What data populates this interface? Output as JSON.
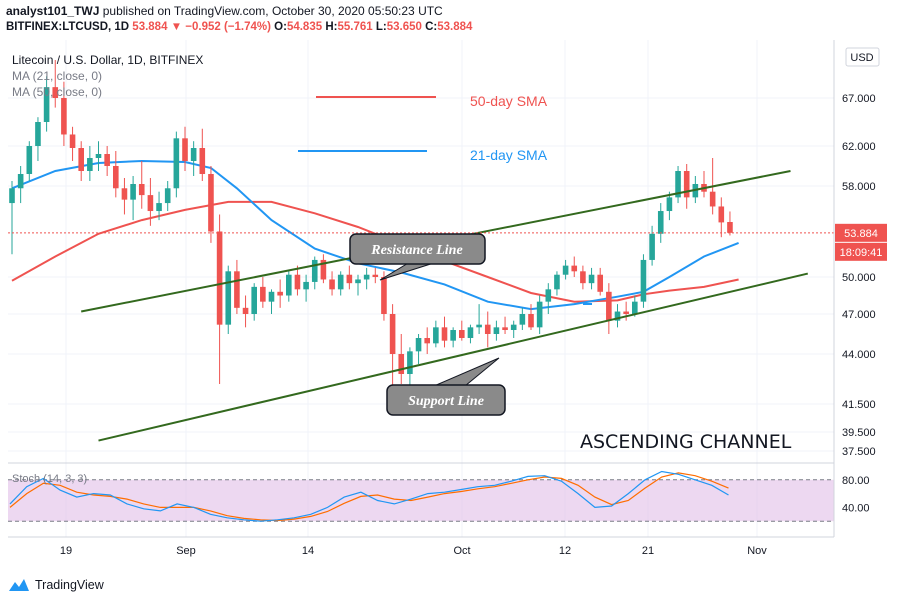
{
  "header": {
    "author": "analyst101_TWJ",
    "published": "published on TradingView.com, October 30, 2020 05:50:23 UTC",
    "symbol": "BITFINEX:LTCUSD, 1D",
    "last": "53.884",
    "change": "−0.952 (−1.74%)",
    "o_label": "O:",
    "o_value": "54.835",
    "h_label": "H:",
    "h_value": "55.761",
    "l_label": "L:",
    "l_value": "53.650",
    "c_label": "C:",
    "c_value": "53.884"
  },
  "legend": {
    "title": "Litecoin / U.S. Dollar, 1D, BITFINEX",
    "ma21": "MA (21, close, 0)",
    "ma50": "MA (50, close, 0)"
  },
  "footer": {
    "brand": "TradingView"
  },
  "colors": {
    "up": "#26a69a",
    "down": "#ef5350",
    "sma50": "#ef5350",
    "sma21": "#2196f3",
    "channel": "#33691e",
    "stoch_k": "#2196f3",
    "stoch_d": "#ff6d00",
    "stoch_band": "#e1bee7"
  },
  "chart_data": [
    {
      "type": "candlestick",
      "title": "Litecoin / U.S. Dollar, 1D, BITFINEX",
      "currency": "USD",
      "x_tick_labels": [
        "19",
        "Sep",
        "14",
        "Oct",
        "12",
        "21",
        "Nov"
      ],
      "y_tick_labels": [
        "67.000",
        "62.000",
        "58.000",
        "50.000",
        "47.000",
        "44.000",
        "41.500",
        "39.500",
        "37.500"
      ],
      "last_price_label": "53.884",
      "countdown_label": "18:09:41",
      "annotations": {
        "sma50": "50-day SMA",
        "sma21": "21-day SMA",
        "resistance": "Resistance Line",
        "support": "Support Line",
        "pattern": "ASCENDING CHANNEL"
      },
      "candles": [
        [
          56.5,
          58.5,
          52.0,
          57.8
        ],
        [
          57.8,
          60.0,
          56.5,
          59.2
        ],
        [
          59.2,
          62.5,
          58.5,
          62.0
        ],
        [
          62.0,
          65.0,
          60.5,
          64.5
        ],
        [
          64.5,
          69.0,
          63.5,
          68.0
        ],
        [
          68.0,
          70.5,
          66.0,
          67.0
        ],
        [
          67.0,
          68.5,
          62.0,
          63.2
        ],
        [
          63.2,
          64.0,
          60.5,
          61.8
        ],
        [
          61.8,
          62.5,
          58.5,
          59.5
        ],
        [
          59.5,
          62.0,
          58.5,
          60.8
        ],
        [
          60.8,
          62.5,
          59.5,
          61.2
        ],
        [
          61.2,
          62.0,
          59.0,
          60.0
        ],
        [
          60.0,
          61.5,
          57.0,
          57.8
        ],
        [
          57.8,
          58.8,
          55.5,
          56.8
        ],
        [
          56.8,
          59.0,
          55.0,
          58.2
        ],
        [
          58.2,
          60.5,
          56.0,
          57.2
        ],
        [
          57.2,
          58.8,
          54.5,
          55.8
        ],
        [
          55.8,
          57.5,
          55.0,
          56.5
        ],
        [
          56.5,
          58.5,
          55.8,
          57.8
        ],
        [
          57.8,
          63.5,
          57.0,
          62.8
        ],
        [
          62.8,
          64.0,
          59.5,
          60.5
        ],
        [
          60.5,
          62.5,
          59.0,
          61.8
        ],
        [
          61.8,
          63.8,
          58.5,
          59.2
        ],
        [
          59.2,
          60.0,
          53.0,
          54.0
        ],
        [
          54.0,
          55.5,
          42.5,
          46.2
        ],
        [
          46.2,
          51.0,
          45.5,
          50.5
        ],
        [
          50.5,
          51.5,
          47.0,
          47.5
        ],
        [
          47.5,
          48.5,
          46.0,
          47.0
        ],
        [
          47.0,
          49.5,
          46.5,
          49.2
        ],
        [
          49.2,
          50.0,
          47.5,
          48.0
        ],
        [
          48.0,
          49.0,
          47.0,
          48.8
        ],
        [
          48.8,
          49.8,
          47.5,
          48.5
        ],
        [
          48.5,
          50.5,
          48.0,
          50.2
        ],
        [
          50.2,
          51.0,
          48.5,
          49.0
        ],
        [
          49.0,
          50.2,
          48.0,
          49.6
        ],
        [
          49.6,
          51.8,
          49.0,
          51.5
        ],
        [
          51.5,
          52.0,
          49.5,
          49.8
        ],
        [
          49.8,
          50.5,
          48.5,
          49.0
        ],
        [
          49.0,
          50.5,
          48.5,
          50.2
        ],
        [
          50.2,
          51.0,
          49.0,
          49.5
        ],
        [
          49.5,
          50.2,
          48.5,
          49.8
        ],
        [
          49.8,
          50.8,
          49.0,
          50.2
        ],
        [
          50.2,
          50.8,
          49.5,
          50.0
        ],
        [
          50.0,
          50.5,
          46.5,
          47.0
        ],
        [
          47.0,
          47.8,
          42.0,
          44.0
        ],
        [
          44.0,
          45.5,
          42.5,
          43.0
        ],
        [
          43.0,
          44.5,
          42.0,
          44.2
        ],
        [
          44.2,
          45.5,
          43.5,
          45.2
        ],
        [
          45.2,
          46.0,
          44.0,
          44.8
        ],
        [
          44.8,
          46.5,
          44.5,
          46.0
        ],
        [
          46.0,
          46.8,
          44.5,
          45.0
        ],
        [
          45.0,
          46.0,
          44.5,
          45.8
        ],
        [
          45.8,
          46.5,
          45.0,
          45.2
        ],
        [
          45.2,
          46.2,
          44.8,
          46.0
        ],
        [
          46.0,
          47.8,
          45.5,
          46.2
        ],
        [
          46.2,
          47.2,
          44.5,
          45.5
        ],
        [
          45.5,
          46.5,
          45.0,
          46.0
        ],
        [
          46.0,
          46.8,
          45.5,
          45.8
        ],
        [
          45.8,
          46.5,
          45.2,
          46.2
        ],
        [
          46.2,
          47.5,
          45.8,
          47.0
        ],
        [
          47.0,
          47.8,
          45.8,
          46.0
        ],
        [
          46.0,
          48.5,
          45.5,
          48.0
        ],
        [
          48.0,
          49.5,
          47.0,
          49.0
        ],
        [
          49.0,
          50.5,
          48.5,
          50.2
        ],
        [
          50.2,
          51.5,
          49.8,
          51.0
        ],
        [
          51.0,
          51.8,
          50.0,
          50.5
        ],
        [
          50.5,
          51.0,
          49.0,
          49.5
        ],
        [
          49.5,
          50.8,
          49.0,
          50.2
        ],
        [
          50.2,
          50.8,
          48.5,
          48.8
        ],
        [
          48.8,
          49.5,
          45.5,
          46.5
        ],
        [
          46.5,
          47.8,
          46.0,
          47.2
        ],
        [
          47.2,
          48.0,
          46.5,
          47.0
        ],
        [
          47.0,
          48.5,
          46.8,
          48.0
        ],
        [
          48.0,
          52.0,
          47.5,
          51.5
        ],
        [
          51.5,
          54.5,
          51.0,
          53.8
        ],
        [
          53.8,
          56.5,
          53.0,
          55.8
        ],
        [
          55.8,
          57.5,
          55.0,
          57.0
        ],
        [
          57.0,
          60.0,
          56.5,
          59.5
        ],
        [
          59.5,
          60.2,
          56.0,
          57.0
        ],
        [
          57.0,
          59.0,
          56.5,
          58.2
        ],
        [
          58.2,
          59.5,
          57.0,
          57.5
        ],
        [
          57.5,
          60.8,
          55.5,
          56.2
        ],
        [
          56.2,
          57.0,
          53.5,
          54.8
        ],
        [
          54.835,
          55.761,
          53.65,
          53.884
        ]
      ],
      "sma21": [
        [
          0,
          57.8
        ],
        [
          5,
          59.5
        ],
        [
          10,
          60.3
        ],
        [
          15,
          60.5
        ],
        [
          20,
          60.4
        ],
        [
          23,
          59.8
        ],
        [
          26,
          57.8
        ],
        [
          30,
          55.0
        ],
        [
          35,
          52.5
        ],
        [
          40,
          51.2
        ],
        [
          45,
          50.4
        ],
        [
          50,
          49.4
        ],
        [
          55,
          48.0
        ],
        [
          60,
          47.4
        ],
        [
          65,
          47.8
        ],
        [
          70,
          48.4
        ],
        [
          73,
          48.8
        ],
        [
          76,
          50.0
        ],
        [
          80,
          51.8
        ],
        [
          84,
          53.0
        ]
      ],
      "sma50": [
        [
          0,
          49.7
        ],
        [
          5,
          51.8
        ],
        [
          10,
          53.8
        ],
        [
          15,
          55.0
        ],
        [
          20,
          55.9
        ],
        [
          25,
          56.6
        ],
        [
          30,
          56.6
        ],
        [
          35,
          55.6
        ],
        [
          40,
          54.4
        ],
        [
          45,
          52.9
        ],
        [
          50,
          51.4
        ],
        [
          55,
          50.0
        ],
        [
          60,
          48.7
        ],
        [
          65,
          48.0
        ],
        [
          70,
          48.1
        ],
        [
          73,
          48.6
        ],
        [
          76,
          48.9
        ],
        [
          80,
          49.2
        ],
        [
          84,
          49.8
        ]
      ],
      "channel": {
        "resistance": [
          [
            8,
            47.2
          ],
          [
            90,
            59.5
          ]
        ],
        "support": [
          [
            10,
            38.6
          ],
          [
            92,
            50.3
          ]
        ]
      }
    },
    {
      "type": "line",
      "title": "Stoch (14, 3, 3)",
      "y_tick_labels": [
        "80.00",
        "40.00"
      ],
      "band": [
        20,
        80
      ],
      "series": [
        {
          "name": "%K",
          "values": [
            [
              0,
              45
            ],
            [
              3,
              70
            ],
            [
              6,
              82
            ],
            [
              9,
              65
            ],
            [
              12,
              55
            ],
            [
              15,
              60
            ],
            [
              18,
              58
            ],
            [
              21,
              45
            ],
            [
              24,
              38
            ],
            [
              27,
              35
            ],
            [
              30,
              45
            ],
            [
              33,
              40
            ],
            [
              36,
              30
            ],
            [
              39,
              25
            ],
            [
              42,
              22
            ],
            [
              45,
              20
            ],
            [
              48,
              22
            ],
            [
              51,
              25
            ],
            [
              54,
              30
            ],
            [
              57,
              40
            ],
            [
              60,
              55
            ],
            [
              63,
              62
            ],
            [
              66,
              50
            ],
            [
              69,
              45
            ],
            [
              72,
              52
            ],
            [
              75,
              60
            ],
            [
              78,
              62
            ],
            [
              81,
              66
            ],
            [
              84,
              70
            ],
            [
              87,
              72
            ],
            [
              90,
              78
            ],
            [
              93,
              85
            ],
            [
              96,
              86
            ],
            [
              99,
              78
            ],
            [
              102,
              60
            ],
            [
              105,
              40
            ],
            [
              108,
              42
            ],
            [
              111,
              60
            ],
            [
              114,
              80
            ],
            [
              117,
              92
            ],
            [
              120,
              88
            ],
            [
              123,
              80
            ],
            [
              126,
              72
            ],
            [
              129,
              58
            ]
          ]
        },
        {
          "name": "%D",
          "values": [
            [
              0,
              40
            ],
            [
              3,
              60
            ],
            [
              6,
              75
            ],
            [
              9,
              72
            ],
            [
              12,
              62
            ],
            [
              15,
              58
            ],
            [
              18,
              56
            ],
            [
              21,
              52
            ],
            [
              24,
              45
            ],
            [
              27,
              40
            ],
            [
              30,
              40
            ],
            [
              33,
              40
            ],
            [
              36,
              35
            ],
            [
              39,
              28
            ],
            [
              42,
              24
            ],
            [
              45,
              22
            ],
            [
              48,
              21
            ],
            [
              51,
              23
            ],
            [
              54,
              27
            ],
            [
              57,
              34
            ],
            [
              60,
              46
            ],
            [
              63,
              56
            ],
            [
              66,
              58
            ],
            [
              69,
              52
            ],
            [
              72,
              50
            ],
            [
              75,
              55
            ],
            [
              78,
              60
            ],
            [
              81,
              63
            ],
            [
              84,
              67
            ],
            [
              87,
              70
            ],
            [
              90,
              75
            ],
            [
              93,
              80
            ],
            [
              96,
              84
            ],
            [
              99,
              82
            ],
            [
              102,
              72
            ],
            [
              105,
              55
            ],
            [
              108,
              44
            ],
            [
              111,
              50
            ],
            [
              114,
              68
            ],
            [
              117,
              84
            ],
            [
              120,
              90
            ],
            [
              123,
              86
            ],
            [
              126,
              78
            ],
            [
              129,
              68
            ]
          ]
        }
      ]
    }
  ]
}
